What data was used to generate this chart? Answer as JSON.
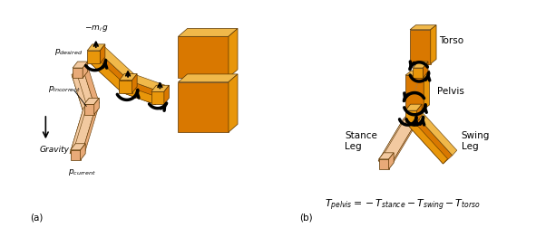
{
  "fig_width": 5.91,
  "fig_height": 2.52,
  "dpi": 100,
  "bg_color": "#ffffff",
  "orange_dark": "#D97800",
  "orange_mid": "#E8960A",
  "orange_light": "#F0B84A",
  "peach_light": "#F2C9A0",
  "peach_mid": "#E8AA78",
  "text_color": "#000000",
  "panel_a_label": "(a)",
  "panel_b_label": "(b)",
  "label_pdesired": "$p_{desired}$",
  "label_pincorrect": "$p_{incorrect}$",
  "label_pcurrent": "$p_{current}$",
  "label_gravity": "Gravity",
  "label_force": "$-m_i\\,g$",
  "label_torso": "Torso",
  "label_pelvis": "Pelvis",
  "label_stance": "Stance\nLeg",
  "label_swing": "Swing\nLeg",
  "label_equation": "$T_{pelvis} = -T_{stance} - T_{swing} - T_{torso}$"
}
